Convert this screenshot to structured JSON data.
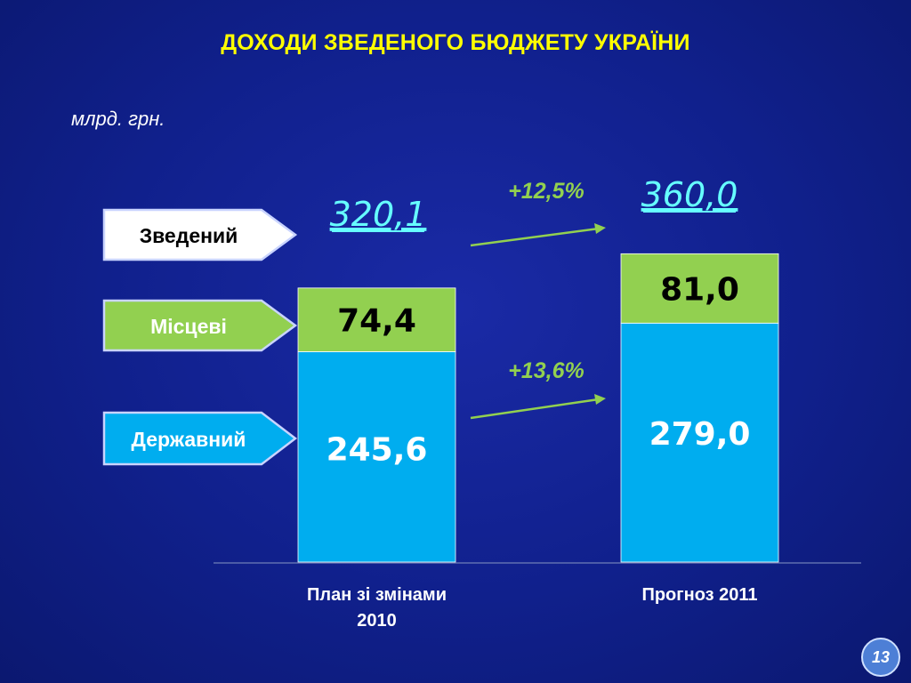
{
  "title": "ДОХОДИ ЗВЕДЕНОГО БЮДЖЕТУ УКРАЇНИ",
  "unit": "млрд. грн.",
  "page_number": "13",
  "colors": {
    "background": "#10208c",
    "title": "#ffff00",
    "derzhavnyi": "#00adef",
    "mistsevi": "#92d050",
    "total_label": "#66ffff",
    "growth_label": "#92d050",
    "arrow": "#92d050"
  },
  "chart_data": {
    "type": "bar",
    "stacked": true,
    "categories": [
      "План зі змінами 2010",
      "Прогноз 2011"
    ],
    "category_lines": [
      [
        "План зі змінами",
        "2010"
      ],
      [
        "Прогноз 2011"
      ]
    ],
    "series": [
      {
        "name": "Державний",
        "values": [
          245.6,
          279.0
        ],
        "labels": [
          "245,6",
          "279,0"
        ],
        "color": "#00adef"
      },
      {
        "name": "Місцеві",
        "values": [
          74.4,
          81.0
        ],
        "labels": [
          "74,4",
          "81,0"
        ],
        "color": "#92d050"
      }
    ],
    "totals": {
      "name": "Зведений",
      "values": [
        320.1,
        360.0
      ],
      "labels": [
        "320,1",
        "360,0"
      ]
    },
    "growth": [
      {
        "label": "+12,5%",
        "series": "Зведений"
      },
      {
        "label": "+13,6%",
        "series": "Державний"
      }
    ],
    "ylim": [
      0,
      450
    ],
    "grid": false,
    "legend": "left"
  }
}
